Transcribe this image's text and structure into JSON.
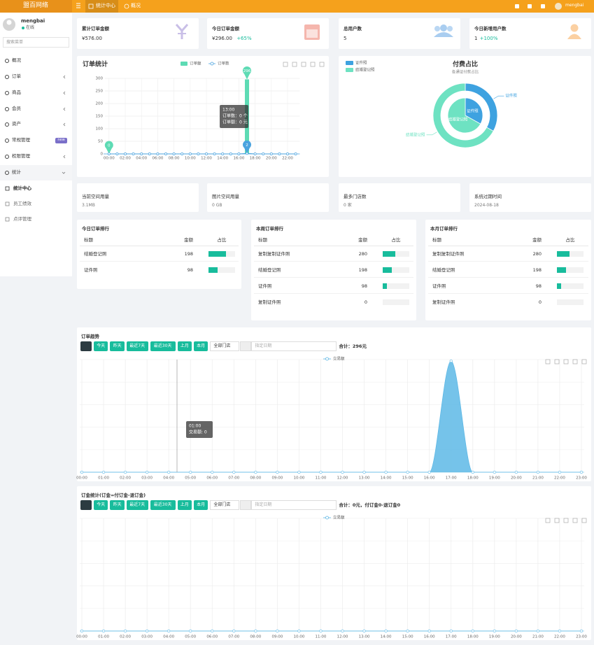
{
  "header": {
    "brand": "盟百网络",
    "tabs": [
      "统计中心",
      "概况"
    ],
    "user": "mengbai"
  },
  "sidebar": {
    "user": "mengbai",
    "status": "在线",
    "search_placeholder": "搜索菜单",
    "menu": [
      {
        "label": "概况"
      },
      {
        "label": "订单"
      },
      {
        "label": "商品"
      },
      {
        "label": "会员"
      },
      {
        "label": "资产"
      },
      {
        "label": "常规管理",
        "badge": "new"
      },
      {
        "label": "权限管理"
      },
      {
        "label": "统计"
      }
    ],
    "submenu": [
      "统计中心",
      "员工绩效",
      "点评管理"
    ]
  },
  "stats": [
    {
      "label": "累计订单金额",
      "value": "¥576.00"
    },
    {
      "label": "今日订单金额",
      "value": "¥296.00",
      "change": "+65%"
    },
    {
      "label": "总用户数",
      "value": "5"
    },
    {
      "label": "今日新增用户数",
      "value": "1",
      "change": "+100%"
    }
  ],
  "info": [
    {
      "label": "当前空间用量",
      "value": "3.1MB"
    },
    {
      "label": "图片空间用量",
      "value": "0 GB"
    },
    {
      "label": "最多门店数",
      "value": "0 家"
    },
    {
      "label": "系统过期时间",
      "value": "2024-08-18"
    }
  ],
  "rankings": [
    {
      "title": "今日订单排行",
      "columns": [
        "标题",
        "金额",
        "占比"
      ],
      "rows": [
        [
          "结婚登记照",
          198
        ],
        [
          "证件照",
          98
        ]
      ]
    },
    {
      "title": "本周订单排行",
      "columns": [
        "标题",
        "金额",
        "占比"
      ],
      "rows": [
        [
          "复制复制证件照",
          280
        ],
        [
          "结婚登记照",
          198
        ],
        [
          "证件照",
          98
        ],
        [
          "复制证件照",
          0
        ]
      ]
    },
    {
      "title": "本月订单排行",
      "columns": [
        "标题",
        "金额",
        "占比"
      ],
      "rows": [
        [
          "复制复制证件照",
          280
        ],
        [
          "结婚登记照",
          198
        ],
        [
          "证件照",
          98
        ],
        [
          "复制证件照",
          0
        ]
      ]
    }
  ],
  "chart_data": [
    {
      "type": "combo",
      "title": "订单统计",
      "categories": [
        "00:00",
        null,
        "02:00",
        null,
        "04:00",
        null,
        "06:00",
        null,
        "08:00",
        null,
        "10:00",
        null,
        "12:00",
        null,
        "14:00",
        null,
        "16:00",
        null,
        "18:00",
        null,
        "20:00",
        null,
        "22:00",
        null
      ],
      "series": [
        {
          "name": "订单额",
          "kind": "bar",
          "color": "#5ddbb4",
          "values": [
            0,
            0,
            0,
            0,
            0,
            0,
            0,
            0,
            0,
            0,
            0,
            0,
            0,
            0,
            0,
            0,
            0,
            296,
            0,
            0,
            0,
            0,
            0,
            0
          ]
        },
        {
          "name": "订单数",
          "kind": "line",
          "color": "#4aa3df",
          "values": [
            0,
            0,
            0,
            0,
            0,
            0,
            0,
            0,
            0,
            0,
            0,
            0,
            0,
            0,
            0,
            0,
            0,
            2,
            0,
            0,
            0,
            0,
            0,
            0
          ]
        }
      ],
      "ylim": [
        0,
        300
      ],
      "yticks": [
        0,
        50,
        100,
        150,
        200,
        250,
        300
      ],
      "grid": true,
      "tooltip": [
        "13:00",
        "订单数：0 个",
        "订单额：0 元"
      ]
    },
    {
      "type": "pie",
      "title": "付费占比",
      "subtitle": "各通证付款占比",
      "categories": [
        "证件照",
        "结婚登记照"
      ],
      "values": [
        98,
        198
      ],
      "colors": [
        "#3ea2e0",
        "#6ee2c2"
      ]
    },
    {
      "type": "area",
      "title": "订单趋势",
      "buttons": [
        "今天",
        "昨天",
        "最近7天",
        "最近30天",
        "上月",
        "本月"
      ],
      "store_select": "全部门店",
      "date_placeholder": "指定日期",
      "total": "合计：296元",
      "categories": [
        "00:00",
        "01:00",
        "02:00",
        "03:00",
        "04:00",
        "05:00",
        "06:00",
        "07:00",
        "08:00",
        "09:00",
        "10:00",
        "11:00",
        "12:00",
        "13:00",
        "14:00",
        "15:00",
        "16:00",
        "17:00",
        "18:00",
        "19:00",
        "20:00",
        "21:00",
        "22:00",
        "23:00"
      ],
      "series": [
        {
          "name": "交易额",
          "color": "#5db8e6",
          "values": [
            0,
            0,
            0,
            0,
            0,
            0,
            0,
            0,
            0,
            0,
            0,
            0,
            0,
            0,
            0,
            0,
            0,
            296,
            0,
            0,
            0,
            0,
            0,
            0
          ]
        }
      ],
      "ylim": [
        0,
        300
      ],
      "tooltip": [
        "01:00",
        "交易额: 0"
      ]
    },
    {
      "type": "area",
      "title": "订金统计(订金=付订金-退订金)",
      "buttons": [
        "今天",
        "昨天",
        "最近7天",
        "最近30天",
        "上月",
        "本月"
      ],
      "store_select": "全部门店",
      "date_placeholder": "指定日期",
      "total": "合计：0元，付订金0-退订金0",
      "categories": [
        "00:00",
        "01:00",
        "02:00",
        "03:00",
        "04:00",
        "05:00",
        "06:00",
        "07:00",
        "08:00",
        "09:00",
        "10:00",
        "11:00",
        "12:00",
        "13:00",
        "14:00",
        "15:00",
        "16:00",
        "17:00",
        "18:00",
        "19:00",
        "20:00",
        "21:00",
        "22:00",
        "23:00"
      ],
      "series": [
        {
          "name": "交易额",
          "color": "#5db8e6",
          "values": [
            0,
            0,
            0,
            0,
            0,
            0,
            0,
            0,
            0,
            0,
            0,
            0,
            0,
            0,
            0,
            0,
            0,
            0,
            0,
            0,
            0,
            0,
            0,
            0
          ]
        }
      ],
      "ylim": [
        0,
        1
      ]
    }
  ]
}
